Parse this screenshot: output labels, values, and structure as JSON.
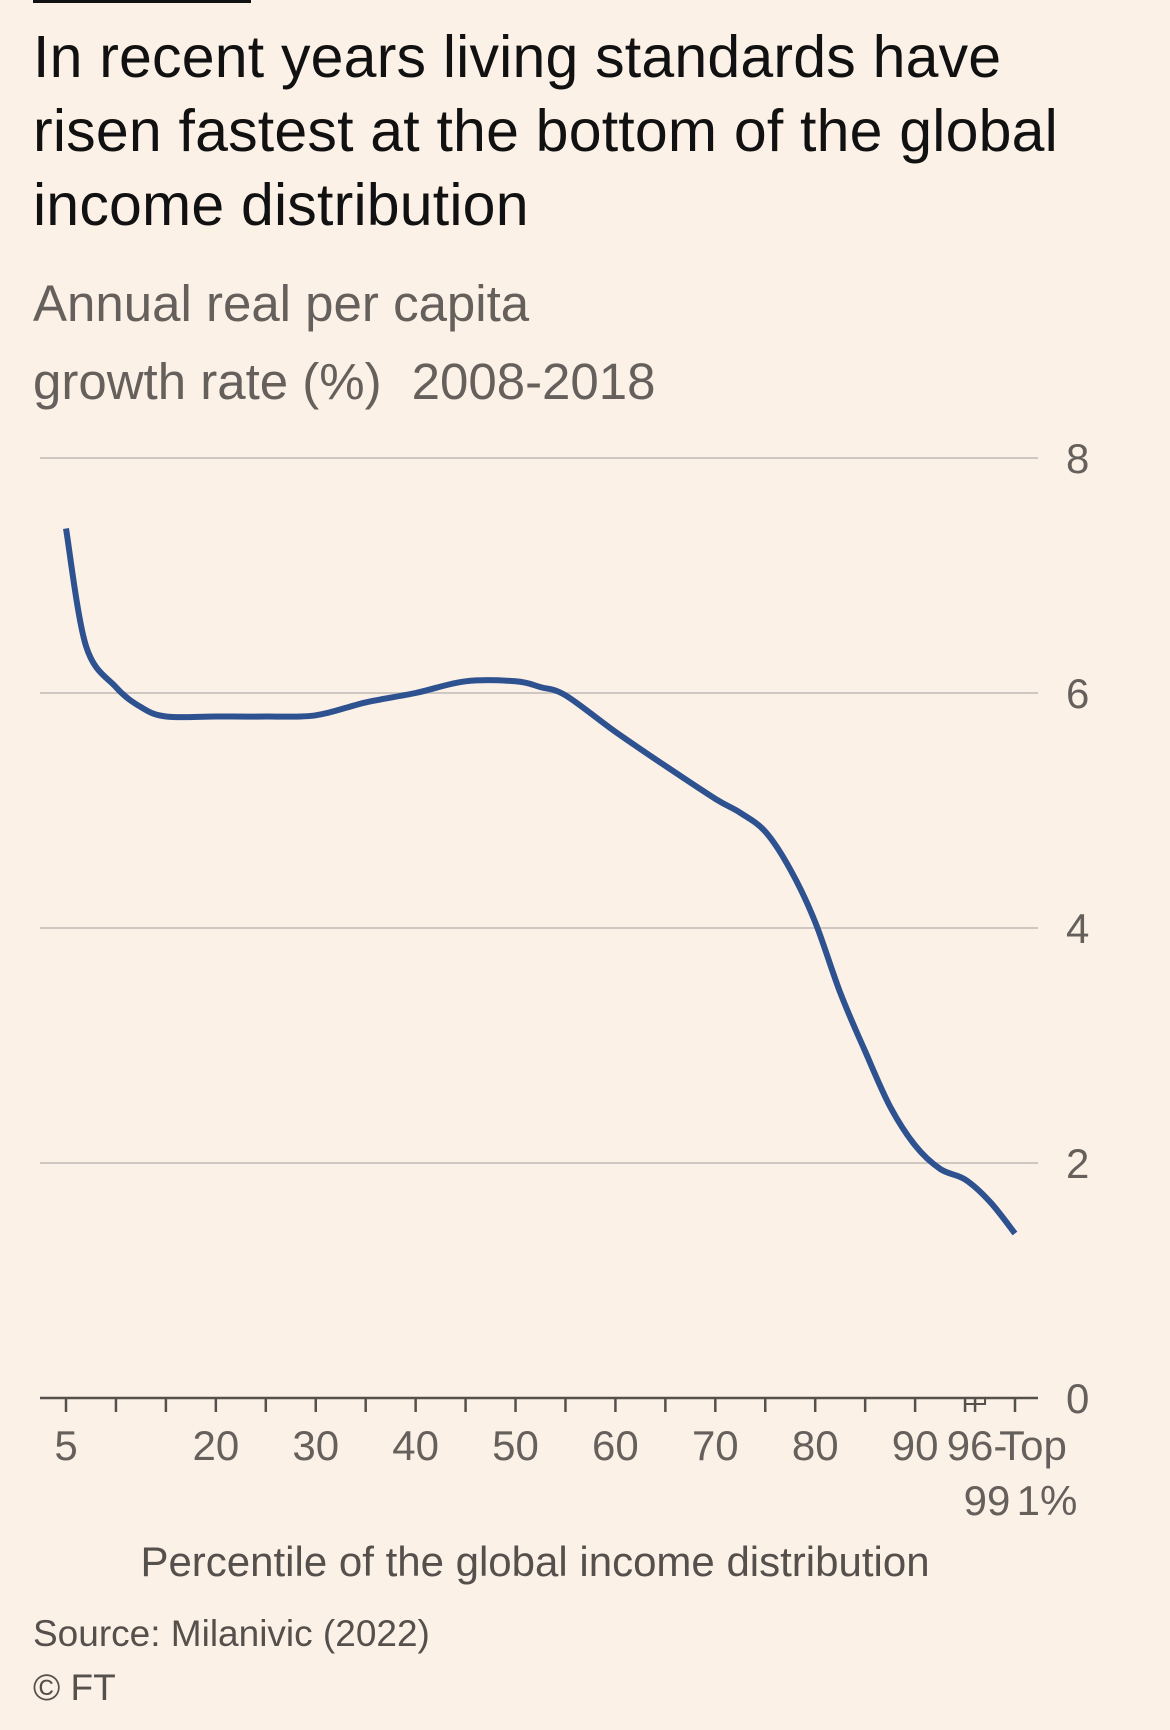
{
  "title": "In recent years living standards have risen fastest at the bottom of the global income distribution",
  "subtitle": {
    "line1": "Annual real per capita",
    "line2": "growth rate (%)",
    "years": "2008-2018"
  },
  "source": "Source: Milanivic (2022)",
  "copyright": "© FT",
  "colors": {
    "background": "#fcf1e7",
    "line": "#2e5290",
    "grid": "#cfc8c2",
    "axis_text": "#66605c"
  },
  "chart_data": {
    "type": "line",
    "xlabel": "Percentile of the global income distribution",
    "ylim": [
      0,
      8
    ],
    "y_ticks": [
      0,
      2,
      4,
      6,
      8
    ],
    "y_axis_position": "right",
    "grid": true,
    "x_tick_labels": [
      {
        "x": 5,
        "lines": [
          "5"
        ]
      },
      {
        "x": 20,
        "lines": [
          "20"
        ]
      },
      {
        "x": 30,
        "lines": [
          "30"
        ]
      },
      {
        "x": 40,
        "lines": [
          "40"
        ]
      },
      {
        "x": 50,
        "lines": [
          "50"
        ]
      },
      {
        "x": 60,
        "lines": [
          "60"
        ]
      },
      {
        "x": 70,
        "lines": [
          "70"
        ]
      },
      {
        "x": 80,
        "lines": [
          "80"
        ]
      },
      {
        "x": 90,
        "lines": [
          "90"
        ]
      },
      {
        "x": 96,
        "lines": [
          "96-",
          "99"
        ]
      },
      {
        "x": 100,
        "lines": [
          "Top",
          "1%"
        ]
      }
    ],
    "x_minor_ticks": [
      5,
      10,
      15,
      20,
      25,
      30,
      35,
      40,
      45,
      50,
      55,
      60,
      65,
      70,
      75,
      80,
      85,
      90,
      95,
      96,
      100
    ],
    "series": [
      {
        "x": [
          5,
          7,
          10,
          12.5,
          15,
          20,
          25,
          30,
          35,
          40,
          45,
          50,
          52.5,
          55,
          60,
          65,
          70,
          72.5,
          75,
          77.5,
          80,
          82.5,
          85,
          87.5,
          90,
          92.5,
          95,
          97.5,
          100
        ],
        "values": [
          7.4,
          6.4,
          6.05,
          5.88,
          5.8,
          5.8,
          5.8,
          5.81,
          5.92,
          6.0,
          6.1,
          6.1,
          6.05,
          5.98,
          5.67,
          5.38,
          5.1,
          4.98,
          4.82,
          4.5,
          4.05,
          3.45,
          2.95,
          2.48,
          2.15,
          1.95,
          1.86,
          1.67,
          1.4
        ]
      }
    ]
  }
}
